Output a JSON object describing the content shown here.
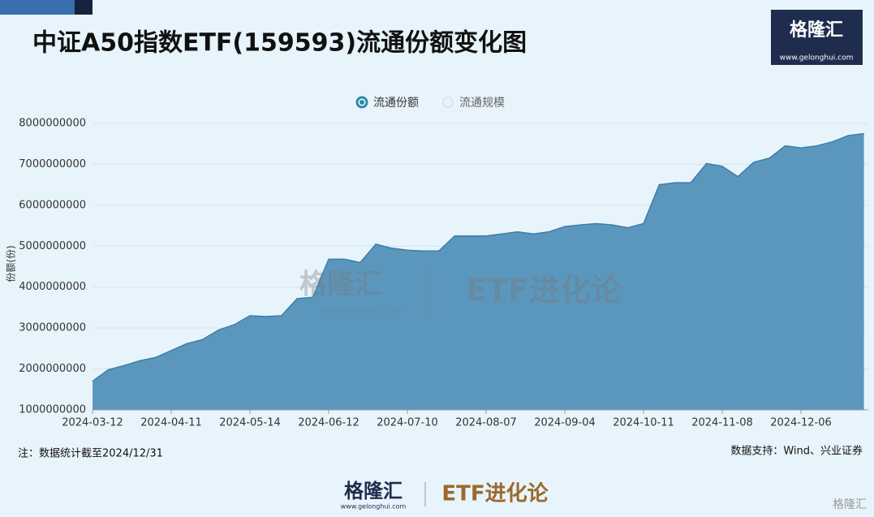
{
  "chart_data": {
    "type": "area",
    "title": "中证A50指数ETF(159593)流通份额变化图",
    "y_label": "份额(份)",
    "categories": [
      "2024-03-12",
      null,
      null,
      null,
      null,
      "2024-04-11",
      null,
      null,
      null,
      null,
      "2024-05-14",
      null,
      null,
      null,
      null,
      "2024-06-12",
      null,
      null,
      null,
      null,
      "2024-07-10",
      null,
      null,
      null,
      null,
      "2024-08-07",
      null,
      null,
      null,
      null,
      "2024-09-04",
      null,
      null,
      null,
      null,
      "2024-10-11",
      null,
      null,
      null,
      null,
      "2024-11-08",
      null,
      null,
      null,
      null,
      "2024-12-06",
      null,
      null,
      null,
      null
    ],
    "series": [
      {
        "name": "流通份额",
        "color": "#2b8aa6",
        "fill": "#5b97bd",
        "line": "#3c7ea8",
        "values": [
          1700000000,
          1980000000,
          2080000000,
          2200000000,
          2280000000,
          2450000000,
          2620000000,
          2720000000,
          2950000000,
          3080000000,
          3300000000,
          3280000000,
          3300000000,
          3720000000,
          3750000000,
          4680000000,
          4680000000,
          4600000000,
          5050000000,
          4950000000,
          4900000000,
          4880000000,
          4880000000,
          5250000000,
          5250000000,
          5250000000,
          5300000000,
          5350000000,
          5300000000,
          5350000000,
          5480000000,
          5520000000,
          5550000000,
          5520000000,
          5450000000,
          5550000000,
          6500000000,
          6550000000,
          6550000000,
          7020000000,
          6950000000,
          6700000000,
          7050000000,
          7150000000,
          7450000000,
          7400000000,
          7450000000,
          7550000000,
          7700000000,
          7750000000
        ]
      },
      {
        "name": "流通规模",
        "color": "#d9dde0",
        "hidden": true
      }
    ],
    "ylim": [
      1000000000,
      8000000000
    ],
    "yticks": [
      1000000000,
      2000000000,
      3000000000,
      4000000000,
      5000000000,
      6000000000,
      7000000000,
      8000000000
    ],
    "grid": true
  },
  "header": {
    "logo": "格隆汇",
    "url": "www.gelonghui.com"
  },
  "watermark": {
    "logo": "格隆汇",
    "url": "www.gelonghui.com",
    "brand": "ETF进化论"
  },
  "footer": {
    "note": "注：数据统计截至2024/12/31",
    "source": "数据支持：Wind、兴业证券",
    "logo": "格隆汇",
    "url": "www.gelonghui.com",
    "brand": "ETF进化论",
    "corner": "格隆汇"
  }
}
